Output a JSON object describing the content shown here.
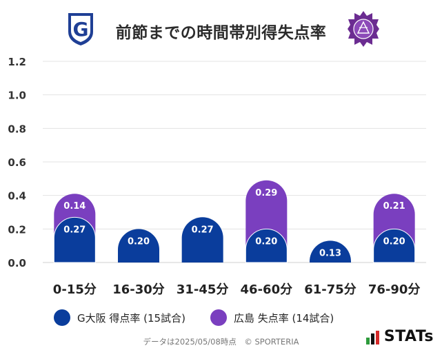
{
  "header": {
    "title": "前節までの時間帯別得失点率",
    "left_logo_letter": "G"
  },
  "colors": {
    "series1": "#0a3d9c",
    "series2": "#7a3fbf",
    "grid": "#e3e3e3",
    "axis_text": "#333333"
  },
  "chart_data": {
    "type": "bar",
    "categories": [
      "0-15分",
      "16-30分",
      "31-45分",
      "46-60分",
      "61-75分",
      "76-90分"
    ],
    "series": [
      {
        "name": "G大阪 得点率 (15試合)",
        "values": [
          0.27,
          0.2,
          0.27,
          0.2,
          0.13,
          0.2
        ]
      },
      {
        "name": "広島 失点率 (14試合)",
        "values": [
          0.14,
          0.0,
          0.0,
          0.29,
          0.0,
          0.21
        ]
      }
    ],
    "labels": [
      [
        "0.27",
        "0.20",
        "0.27",
        "0.20",
        "0.13",
        "0.20"
      ],
      [
        "0.14",
        "",
        "",
        "0.29",
        "",
        "0.21"
      ]
    ],
    "stacked": true,
    "ylim": [
      0,
      1.2
    ],
    "yticks": [
      "0.0",
      "0.2",
      "0.4",
      "0.6",
      "0.8",
      "1.0",
      "1.2"
    ],
    "grid": true,
    "legend_position": "bottom"
  },
  "legend": {
    "item1": "G大阪 得点率 (15試合)",
    "item2": "広島 失点率 (14試合)"
  },
  "footer": {
    "note": "データは2025/05/08時点　© SPORTERIA",
    "brand": "STATs"
  }
}
